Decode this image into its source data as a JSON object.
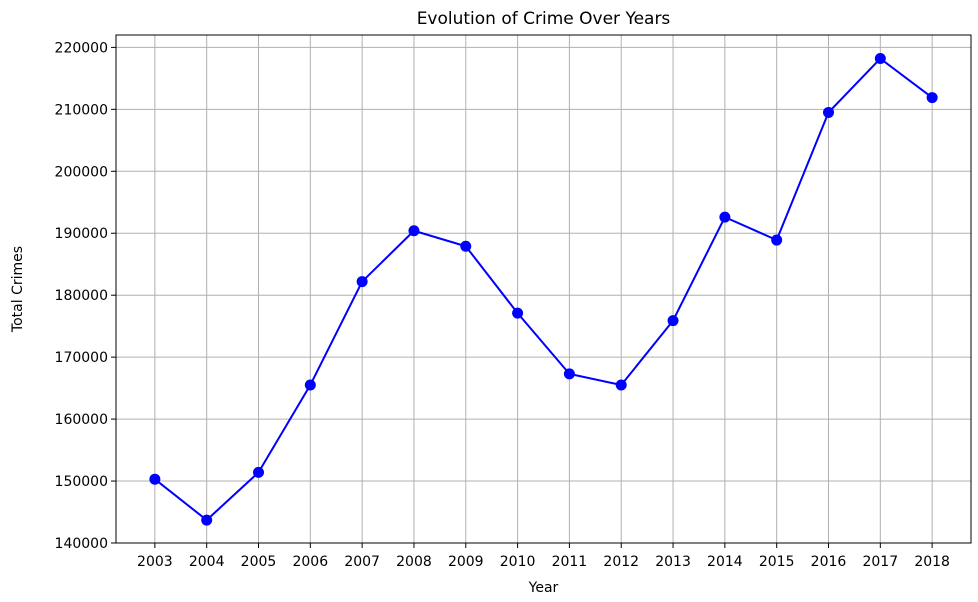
{
  "chart_data": {
    "type": "line",
    "title": "Evolution of Crime Over Years",
    "xlabel": "Year",
    "ylabel": "Total Crimes",
    "x": [
      2003,
      2004,
      2005,
      2006,
      2007,
      2008,
      2009,
      2010,
      2011,
      2012,
      2013,
      2014,
      2015,
      2016,
      2017,
      2018
    ],
    "series": [
      {
        "values": [
          150300,
          143700,
          151400,
          165500,
          182200,
          190400,
          187900,
          177100,
          167300,
          165500,
          175900,
          192600,
          188900,
          209500,
          218200,
          211900
        ],
        "color": "#0000ff",
        "marker": "circle"
      }
    ],
    "ylim": [
      140000,
      222000
    ],
    "y_ticks": [
      140000,
      150000,
      160000,
      170000,
      180000,
      190000,
      200000,
      210000,
      220000
    ],
    "y_tick_labels": [
      "140000",
      "150000",
      "160000",
      "170000",
      "180000",
      "190000",
      "200000",
      "210000",
      "220000"
    ],
    "x_tick_labels": [
      "2003",
      "2004",
      "2005",
      "2006",
      "2007",
      "2008",
      "2009",
      "2010",
      "2011",
      "2012",
      "2013",
      "2014",
      "2015",
      "2016",
      "2017",
      "2018"
    ],
    "grid": true,
    "legend": "none",
    "colors": {
      "line": "#0000ff",
      "grid": "#b0b0b0",
      "axes": "#000000"
    }
  }
}
